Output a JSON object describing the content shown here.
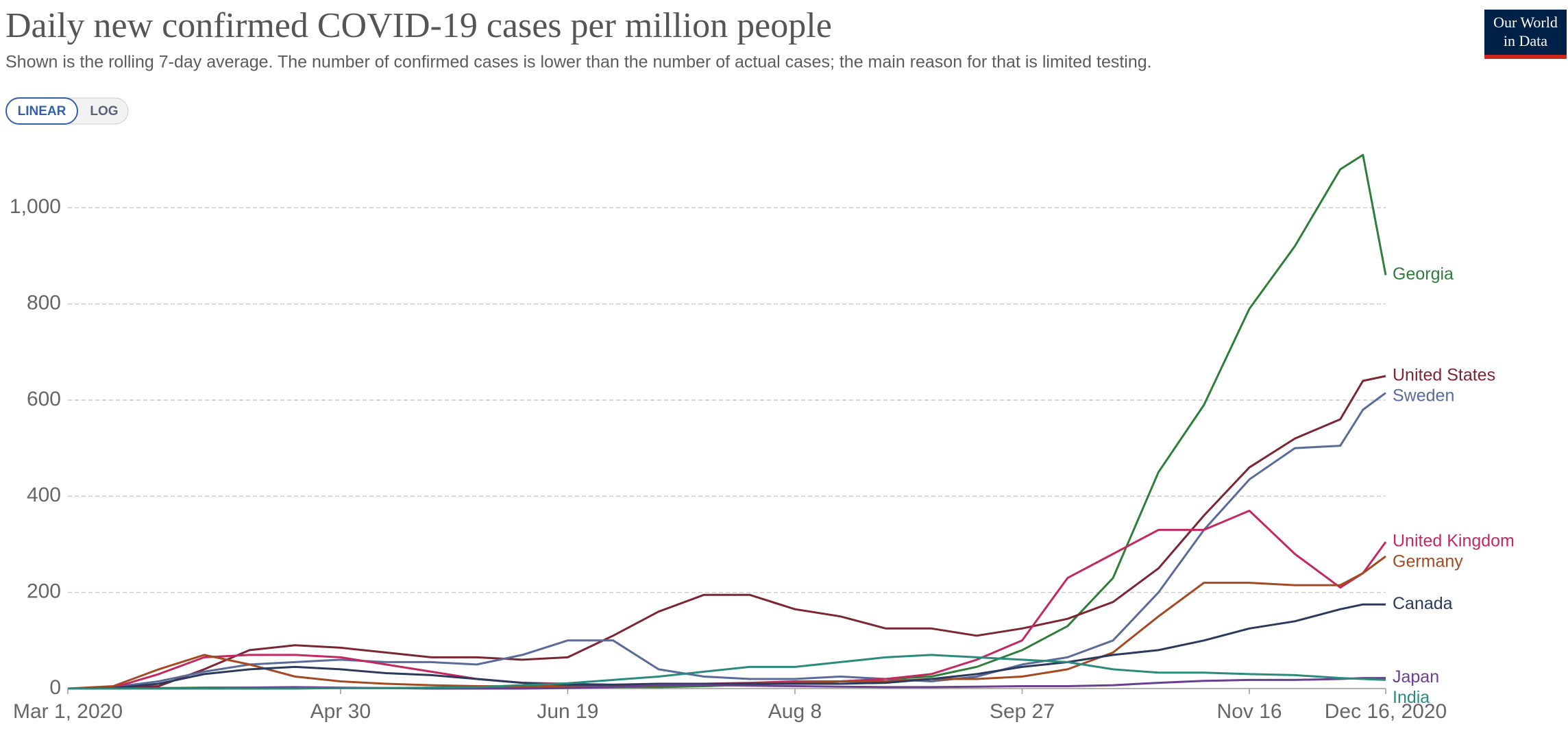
{
  "chart_data": {
    "type": "line",
    "title": "Daily new confirmed COVID-19 cases per million people",
    "subtitle": "Shown is the rolling 7-day average. The number of confirmed cases is lower than the number of actual cases; the main reason for that is limited testing.",
    "scale_buttons": [
      "LINEAR",
      "LOG"
    ],
    "logo": [
      "Our World",
      "in Data"
    ],
    "x": [
      0,
      10,
      20,
      30,
      40,
      50,
      60,
      70,
      80,
      90,
      100,
      110,
      120,
      130,
      140,
      150,
      160,
      170,
      180,
      190,
      200,
      210,
      220,
      230,
      240,
      250,
      260,
      270,
      280,
      285,
      290
    ],
    "xlim": [
      0,
      290
    ],
    "xticks": [
      {
        "value": 0,
        "label": "Mar 1, 2020"
      },
      {
        "value": 60,
        "label": "Apr 30"
      },
      {
        "value": 110,
        "label": "Jun 19"
      },
      {
        "value": 160,
        "label": "Aug 8"
      },
      {
        "value": 210,
        "label": "Sep 27"
      },
      {
        "value": 260,
        "label": "Nov 16"
      },
      {
        "value": 290,
        "label": "Dec 16, 2020"
      }
    ],
    "ylim": [
      0,
      1150
    ],
    "yticks": [
      0,
      200,
      400,
      600,
      800,
      {
        "value": 1000,
        "label": "1,000"
      }
    ],
    "grid": true,
    "series": [
      {
        "name": "Georgia",
        "color": "#2e7d3a",
        "values": [
          0,
          0,
          1,
          2,
          2,
          1,
          1,
          1,
          1,
          2,
          3,
          3,
          3,
          3,
          5,
          8,
          12,
          15,
          20,
          25,
          45,
          80,
          130,
          230,
          450,
          590,
          790,
          920,
          1080,
          1110,
          860
        ]
      },
      {
        "name": "United States",
        "color": "#7a2633",
        "values": [
          0,
          0,
          5,
          40,
          80,
          90,
          85,
          75,
          65,
          65,
          60,
          65,
          110,
          160,
          195,
          195,
          165,
          150,
          125,
          125,
          110,
          125,
          145,
          180,
          250,
          360,
          460,
          520,
          560,
          640,
          650
        ]
      },
      {
        "name": "Sweden",
        "color": "#5a6b9a",
        "values": [
          0,
          3,
          15,
          35,
          50,
          55,
          60,
          55,
          55,
          50,
          70,
          100,
          100,
          40,
          25,
          20,
          20,
          25,
          20,
          15,
          25,
          50,
          65,
          100,
          200,
          330,
          435,
          500,
          505,
          580,
          615
        ]
      },
      {
        "name": "United Kingdom",
        "color": "#c3295f",
        "values": [
          0,
          2,
          30,
          65,
          70,
          70,
          65,
          50,
          35,
          20,
          12,
          10,
          8,
          8,
          10,
          12,
          15,
          15,
          20,
          30,
          60,
          100,
          230,
          280,
          330,
          330,
          370,
          280,
          210,
          240,
          305
        ]
      },
      {
        "name": "Germany",
        "color": "#a34a22",
        "values": [
          0,
          5,
          40,
          70,
          50,
          25,
          15,
          10,
          7,
          5,
          5,
          5,
          5,
          6,
          8,
          10,
          12,
          15,
          15,
          20,
          20,
          25,
          40,
          75,
          150,
          220,
          220,
          215,
          215,
          240,
          275
        ]
      },
      {
        "name": "Canada",
        "color": "#2b3a5c",
        "values": [
          0,
          1,
          10,
          30,
          40,
          45,
          40,
          32,
          28,
          20,
          12,
          8,
          8,
          10,
          10,
          10,
          10,
          10,
          12,
          20,
          30,
          45,
          55,
          70,
          80,
          100,
          125,
          140,
          165,
          175,
          175
        ]
      },
      {
        "name": "Japan",
        "color": "#6b3f8f",
        "values": [
          0,
          0,
          0,
          1,
          2,
          3,
          2,
          1,
          0,
          0,
          0,
          1,
          3,
          7,
          7,
          6,
          5,
          4,
          3,
          3,
          4,
          5,
          5,
          7,
          12,
          16,
          18,
          18,
          20,
          22,
          22
        ]
      },
      {
        "name": "India",
        "color": "#2b8a7c",
        "values": [
          0,
          0,
          0,
          0,
          0,
          0,
          1,
          1,
          2,
          3,
          7,
          11,
          18,
          25,
          35,
          45,
          45,
          55,
          65,
          70,
          65,
          60,
          55,
          40,
          33,
          33,
          30,
          28,
          22,
          20,
          18
        ]
      }
    ]
  }
}
